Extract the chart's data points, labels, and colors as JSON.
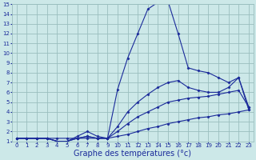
{
  "background_color": "#cce8e8",
  "grid_color": "#9abfbf",
  "line_color": "#1a2a9a",
  "xlabel": "Graphe des températures (°c)",
  "xlabel_fontsize": 7,
  "xlim": [
    -0.5,
    23.5
  ],
  "ylim": [
    1,
    15
  ],
  "yticks": [
    1,
    2,
    3,
    4,
    5,
    6,
    7,
    8,
    9,
    10,
    11,
    12,
    13,
    14,
    15
  ],
  "xticks": [
    0,
    1,
    2,
    3,
    4,
    5,
    6,
    7,
    8,
    9,
    10,
    11,
    12,
    13,
    14,
    15,
    16,
    17,
    18,
    19,
    20,
    21,
    22,
    23
  ],
  "series": [
    {
      "x": [
        0,
        1,
        2,
        3,
        4,
        5,
        6,
        7,
        8,
        9,
        10,
        11,
        12,
        13,
        14,
        15,
        16,
        17,
        18,
        19,
        20,
        21,
        22,
        23
      ],
      "y": [
        1.3,
        1.3,
        1.3,
        1.3,
        1.3,
        1.3,
        1.3,
        1.3,
        1.3,
        1.3,
        1.5,
        1.7,
        2.0,
        2.3,
        2.5,
        2.8,
        3.0,
        3.2,
        3.4,
        3.5,
        3.7,
        3.8,
        4.0,
        4.2
      ]
    },
    {
      "x": [
        0,
        1,
        2,
        3,
        4,
        5,
        6,
        7,
        8,
        9,
        10,
        11,
        12,
        13,
        14,
        15,
        16,
        17,
        18,
        19,
        20,
        21,
        22,
        23
      ],
      "y": [
        1.3,
        1.3,
        1.3,
        1.3,
        1.0,
        1.0,
        1.3,
        1.5,
        1.3,
        1.3,
        2.0,
        2.8,
        3.5,
        4.0,
        4.5,
        5.0,
        5.2,
        5.4,
        5.5,
        5.6,
        5.8,
        6.0,
        6.2,
        4.5
      ]
    },
    {
      "x": [
        0,
        1,
        2,
        3,
        4,
        5,
        6,
        7,
        8,
        9,
        10,
        11,
        12,
        13,
        14,
        15,
        16,
        17,
        18,
        19,
        20,
        21,
        22,
        23
      ],
      "y": [
        1.3,
        1.3,
        1.3,
        1.3,
        1.0,
        1.0,
        1.3,
        1.5,
        1.3,
        1.3,
        2.5,
        4.0,
        5.0,
        5.8,
        6.5,
        7.0,
        7.2,
        6.5,
        6.2,
        6.0,
        6.0,
        6.5,
        7.5,
        4.5
      ]
    },
    {
      "x": [
        0,
        1,
        2,
        3,
        4,
        5,
        6,
        7,
        8,
        9,
        10,
        11,
        12,
        13,
        14,
        15,
        16,
        17,
        18,
        19,
        20,
        21,
        22,
        23
      ],
      "y": [
        1.3,
        1.3,
        1.3,
        1.3,
        1.0,
        1.0,
        1.5,
        2.0,
        1.5,
        1.3,
        6.3,
        9.5,
        12.0,
        14.5,
        15.2,
        15.3,
        12.0,
        8.5,
        8.2,
        8.0,
        7.5,
        7.0,
        7.5,
        4.2
      ]
    }
  ]
}
